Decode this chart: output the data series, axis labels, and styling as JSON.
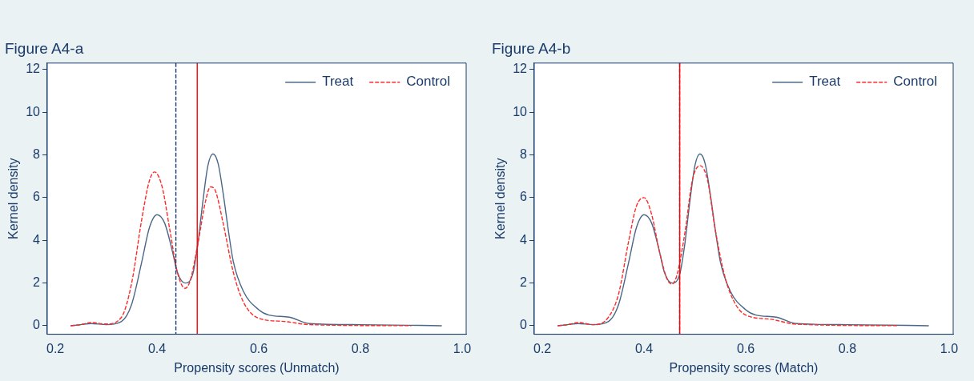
{
  "chart_data": [
    {
      "type": "line",
      "title": "Figure A4-a",
      "xlabel": "Propensity scores (Unmatch)",
      "ylabel": "Kernel density",
      "xlim": [
        0.184,
        1.008
      ],
      "ylim": [
        -0.4,
        12.3
      ],
      "xticks": [
        0.2,
        0.4,
        0.6,
        0.8,
        {
          "value": 1,
          "label": "1.0"
        }
      ],
      "yticks": [
        0,
        2,
        4,
        6,
        8,
        10,
        12
      ],
      "grid": false,
      "legend": "top right",
      "marker": "none",
      "series": [
        {
          "name": "Treat",
          "color": "#4a6786",
          "line_style": "solid",
          "x": [
            0.23,
            0.25,
            0.27,
            0.3,
            0.33,
            0.35,
            0.37,
            0.385,
            0.4,
            0.415,
            0.43,
            0.44,
            0.455,
            0.47,
            0.48,
            0.49,
            0.5,
            0.51,
            0.52,
            0.53,
            0.54,
            0.55,
            0.57,
            0.6,
            0.62,
            0.66,
            0.7,
            0.8,
            0.96
          ],
          "values": [
            0,
            0.05,
            0.1,
            0.05,
            0.2,
            1,
            3,
            4.6,
            5.2,
            4.8,
            3.5,
            2.5,
            2,
            2.4,
            3.8,
            5.8,
            7.5,
            8.05,
            7.6,
            6.2,
            4.5,
            3,
            1.6,
            0.75,
            0.5,
            0.4,
            0.1,
            0.05,
            0
          ]
        },
        {
          "name": "Control",
          "color": "#ff2a2a",
          "line_style": "dashed",
          "x": [
            0.23,
            0.25,
            0.27,
            0.3,
            0.33,
            0.35,
            0.37,
            0.385,
            0.395,
            0.41,
            0.425,
            0.44,
            0.455,
            0.465,
            0.48,
            0.495,
            0.505,
            0.515,
            0.53,
            0.55,
            0.57,
            0.6,
            0.65,
            0.7,
            0.9
          ],
          "values": [
            0,
            0.05,
            0.15,
            0.08,
            0.4,
            2,
            5,
            6.8,
            7.2,
            6.5,
            4.5,
            2.5,
            1.75,
            2.1,
            3.8,
            5.8,
            6.5,
            6.3,
            4.8,
            2.5,
            1.1,
            0.35,
            0.2,
            0.05,
            0
          ]
        }
      ],
      "ref_lines": [
        {
          "axis": "x",
          "value": 0.437,
          "color": "#1a3a6a",
          "line_style": "dashed"
        },
        {
          "axis": "x",
          "value": 0.479,
          "color": "#ff0000",
          "line_style": "solid"
        }
      ]
    },
    {
      "type": "line",
      "title": "Figure A4-b",
      "xlabel": "Propensity scores (Match)",
      "ylabel": "Kernel density",
      "xlim": [
        0.184,
        1.008
      ],
      "ylim": [
        -0.4,
        12.3
      ],
      "xticks": [
        0.2,
        0.4,
        0.6,
        0.8,
        {
          "value": 1,
          "label": "1.0"
        }
      ],
      "yticks": [
        0,
        2,
        4,
        6,
        8,
        10,
        12
      ],
      "grid": false,
      "legend": "top right",
      "marker": "none",
      "series": [
        {
          "name": "Treat",
          "color": "#4a6786",
          "line_style": "solid",
          "x": [
            0.23,
            0.25,
            0.27,
            0.3,
            0.33,
            0.35,
            0.37,
            0.385,
            0.4,
            0.415,
            0.43,
            0.44,
            0.455,
            0.47,
            0.48,
            0.49,
            0.5,
            0.51,
            0.52,
            0.53,
            0.54,
            0.55,
            0.57,
            0.6,
            0.62,
            0.66,
            0.7,
            0.8,
            0.96
          ],
          "values": [
            0,
            0.05,
            0.1,
            0.05,
            0.2,
            1,
            3,
            4.6,
            5.2,
            4.8,
            3.5,
            2.5,
            2,
            2.4,
            3.8,
            5.8,
            7.5,
            8.05,
            7.6,
            6.2,
            4.5,
            3,
            1.6,
            0.75,
            0.5,
            0.4,
            0.1,
            0.05,
            0
          ]
        },
        {
          "name": "Control",
          "color": "#ff2a2a",
          "line_style": "dashed",
          "x": [
            0.23,
            0.25,
            0.27,
            0.3,
            0.33,
            0.35,
            0.37,
            0.385,
            0.4,
            0.415,
            0.43,
            0.445,
            0.455,
            0.465,
            0.48,
            0.495,
            0.51,
            0.525,
            0.54,
            0.56,
            0.58,
            0.6,
            0.65,
            0.7,
            0.9
          ],
          "values": [
            0,
            0.05,
            0.15,
            0.05,
            0.4,
            1.5,
            4,
            5.6,
            6,
            5.2,
            3.5,
            2.2,
            1.95,
            2.4,
            4.3,
            6.8,
            7.5,
            6.8,
            4.5,
            2.2,
            1,
            0.5,
            0.3,
            0.07,
            0
          ]
        }
      ],
      "ref_lines": [
        {
          "axis": "x",
          "value": 0.47,
          "color": "#1a3a6a",
          "line_style": "dashed"
        },
        {
          "axis": "x",
          "value": 0.47,
          "color": "#ff0000",
          "line_style": "solid"
        }
      ]
    }
  ]
}
